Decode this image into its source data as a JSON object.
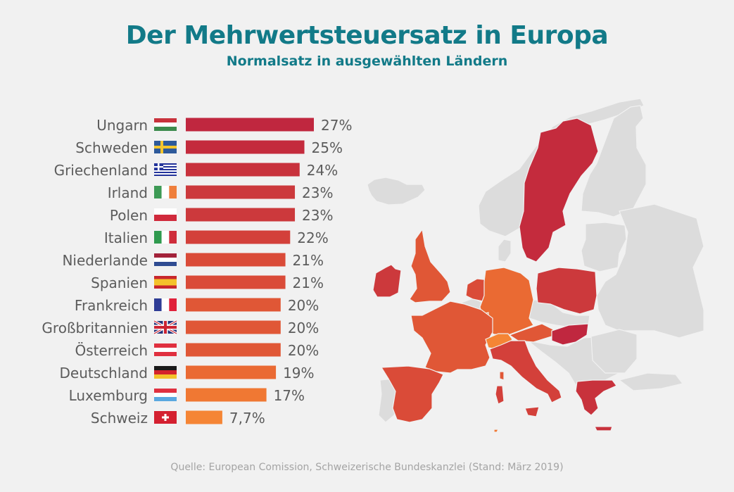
{
  "header": {
    "title": "Der Mehrwertsteuersatz in Europa",
    "subtitle": "Normalsatz in ausgewählten Ländern"
  },
  "footer": {
    "source": "Quelle: European Comission, Schweizerische Bundeskanzlei (Stand: März 2019)"
  },
  "chart_data": {
    "type": "bar",
    "orientation": "horizontal",
    "title": "Der Mehrwertsteuersatz in Europa",
    "subtitle": "Normalsatz in ausgewählten Ländern",
    "xlabel": "",
    "ylabel": "",
    "unit": "%",
    "categories": [
      "Ungarn",
      "Schweden",
      "Griechenland",
      "Irland",
      "Polen",
      "Italien",
      "Niederlande",
      "Spanien",
      "Frankreich",
      "Großbritannien",
      "Österreich",
      "Deutschland",
      "Luxemburg",
      "Schweiz"
    ],
    "values": [
      27,
      25,
      24,
      23,
      23,
      22,
      21,
      21,
      20,
      20,
      20,
      19,
      17,
      7.7
    ],
    "value_labels": [
      "27%",
      "25%",
      "24%",
      "23%",
      "23%",
      "22%",
      "21%",
      "21%",
      "20%",
      "20%",
      "20%",
      "19%",
      "17%",
      "7,7%"
    ],
    "flags": [
      "hu",
      "se",
      "gr",
      "ie",
      "pl",
      "it",
      "nl",
      "es",
      "fr",
      "gb",
      "at",
      "de",
      "lu",
      "ch"
    ],
    "colors": [
      "#c0273f",
      "#c42b3d",
      "#c8323c",
      "#cc393c",
      "#cc393c",
      "#d3403a",
      "#da4b38",
      "#da4b38",
      "#e05736",
      "#e05736",
      "#e05736",
      "#ea6a33",
      "#f07833",
      "#f58535"
    ],
    "xlim": [
      0,
      27
    ],
    "grid": false,
    "legend": "none",
    "map": {
      "highlighted": [
        "Ungarn",
        "Schweden",
        "Griechenland",
        "Irland",
        "Polen",
        "Italien",
        "Niederlande",
        "Spanien",
        "Frankreich",
        "Großbritannien",
        "Österreich",
        "Deutschland",
        "Luxemburg",
        "Schweiz"
      ],
      "base_color": "#dcdcdc"
    }
  }
}
